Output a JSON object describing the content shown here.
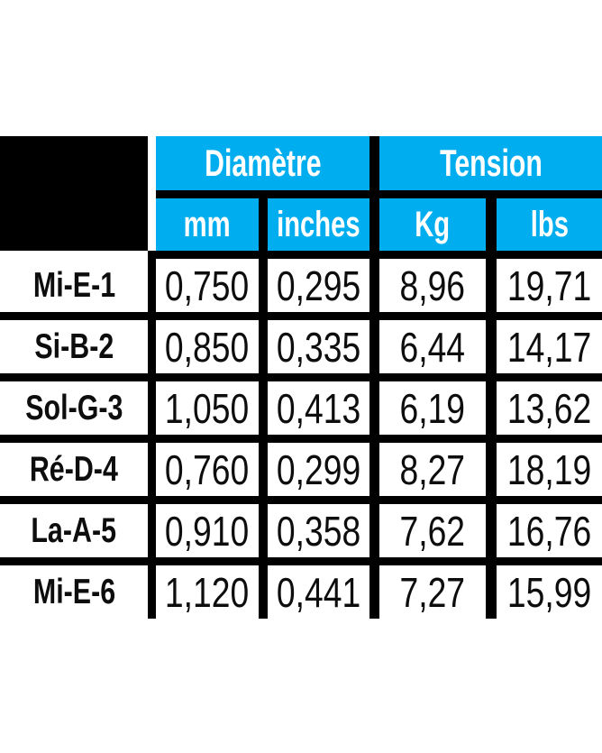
{
  "colors": {
    "accent_blue": "#00ADEE",
    "grid_black": "#000000",
    "header_text": "#ffffff",
    "body_text": "#0d0d0d"
  },
  "table": {
    "header": {
      "diametre": "Diamètre",
      "tension": "Tension"
    },
    "units": [
      "mm",
      "inches",
      "Kg",
      "lbs"
    ],
    "rows": [
      {
        "label": "Mi-E-1",
        "mm": "0,750",
        "inches": "0,295",
        "kg": "8,96",
        "lbs": "19,71"
      },
      {
        "label": "Si-B-2",
        "mm": "0,850",
        "inches": "0,335",
        "kg": "6,44",
        "lbs": "14,17"
      },
      {
        "label": "Sol-G-3",
        "mm": "1,050",
        "inches": "0,413",
        "kg": "6,19",
        "lbs": "13,62"
      },
      {
        "label": "Ré-D-4",
        "mm": "0,760",
        "inches": "0,299",
        "kg": "8,27",
        "lbs": "18,19"
      },
      {
        "label": "La-A-5",
        "mm": "0,910",
        "inches": "0,358",
        "kg": "7,62",
        "lbs": "16,76"
      },
      {
        "label": "Mi-E-6",
        "mm": "1,120",
        "inches": "0,441",
        "kg": "7,27",
        "lbs": "15,99"
      }
    ]
  },
  "chart_data": {
    "type": "table",
    "title": "",
    "column_groups": [
      {
        "label": "Diamètre",
        "columns": [
          "mm",
          "inches"
        ]
      },
      {
        "label": "Tension",
        "columns": [
          "Kg",
          "lbs"
        ]
      }
    ],
    "columns": [
      "",
      "Diamètre mm",
      "Diamètre inches",
      "Tension Kg",
      "Tension lbs"
    ],
    "rows": [
      [
        "Mi-E-1",
        "0,750",
        "0,295",
        "8,96",
        "19,71"
      ],
      [
        "Si-B-2",
        "0,850",
        "0,335",
        "6,44",
        "14,17"
      ],
      [
        "Sol-G-3",
        "1,050",
        "0,413",
        "6,19",
        "13,62"
      ],
      [
        "Ré-D-4",
        "0,760",
        "0,299",
        "8,27",
        "18,19"
      ],
      [
        "La-A-5",
        "0,910",
        "0,358",
        "7,62",
        "16,76"
      ],
      [
        "Mi-E-6",
        "1,120",
        "0,441",
        "7,27",
        "15,99"
      ]
    ],
    "notes": "Decimal commas as displayed (French locale). Table cropped flush at left, right and bottom edges."
  }
}
